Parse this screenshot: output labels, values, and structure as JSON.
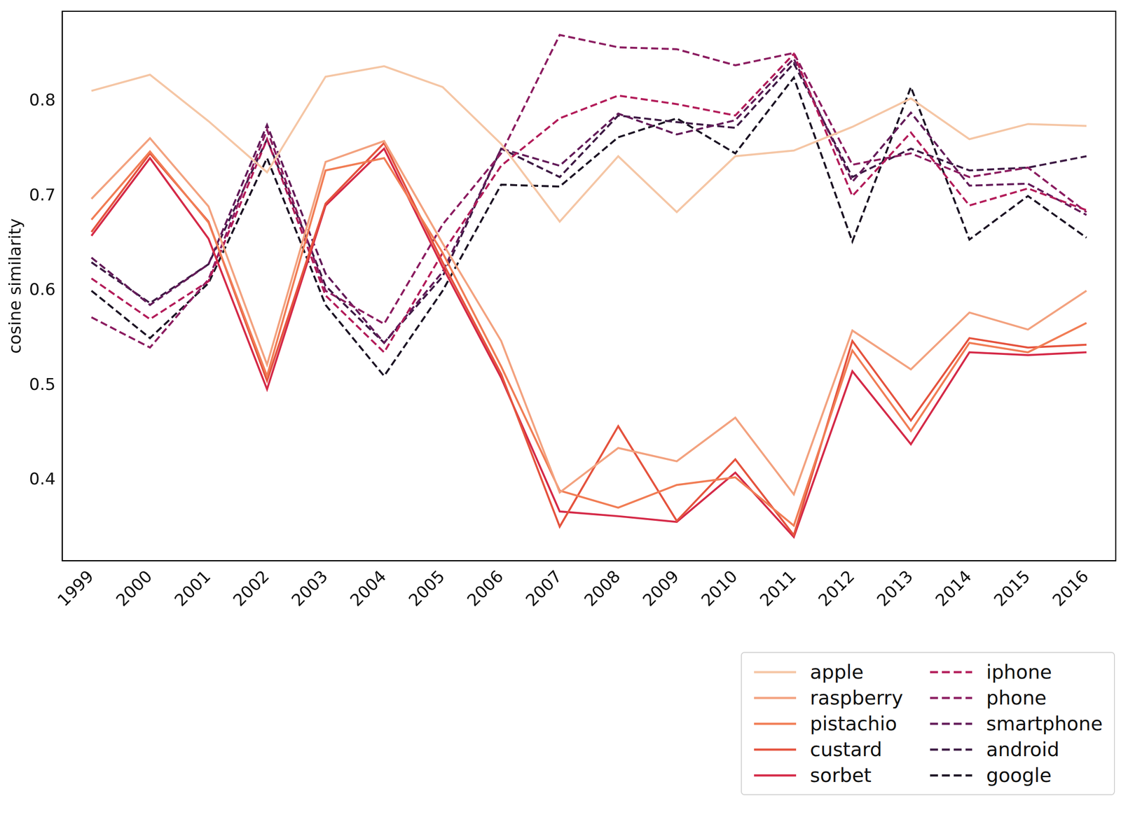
{
  "chart_data": {
    "type": "line",
    "y_label": "cosine similarity",
    "categories": [
      "1999",
      "2000",
      "2001",
      "2002",
      "2003",
      "2004",
      "2005",
      "2006",
      "2007",
      "2008",
      "2009",
      "2010",
      "2011",
      "2012",
      "2013",
      "2014",
      "2015",
      "2016"
    ],
    "ylim": [
      0.315,
      0.895
    ],
    "yticks": [
      0.4,
      0.5,
      0.6,
      0.7,
      0.8
    ],
    "grid": false,
    "legend": "lower right",
    "series": [
      {
        "name": "apple",
        "color": "#f5c6a5",
        "line_style": "solid",
        "values": [
          0.811,
          0.828,
          0.779,
          0.725,
          0.826,
          0.837,
          0.815,
          0.755,
          0.673,
          0.742,
          0.683,
          0.742,
          0.748,
          0.773,
          0.803,
          0.76,
          0.776,
          0.774
        ]
      },
      {
        "name": "raspberry",
        "color": "#f3a27f",
        "line_style": "solid",
        "values": [
          0.697,
          0.761,
          0.689,
          0.522,
          0.736,
          0.758,
          0.65,
          0.547,
          0.387,
          0.434,
          0.42,
          0.466,
          0.385,
          0.558,
          0.517,
          0.577,
          0.559,
          0.6
        ]
      },
      {
        "name": "pistachio",
        "color": "#f17d55",
        "line_style": "solid",
        "values": [
          0.675,
          0.747,
          0.672,
          0.51,
          0.727,
          0.74,
          0.64,
          0.52,
          0.389,
          0.371,
          0.395,
          0.403,
          0.352,
          0.537,
          0.452,
          0.545,
          0.535,
          0.566
        ]
      },
      {
        "name": "custard",
        "color": "#e5533e",
        "line_style": "solid",
        "values": [
          0.662,
          0.745,
          0.673,
          0.505,
          0.692,
          0.756,
          0.63,
          0.512,
          0.351,
          0.457,
          0.357,
          0.422,
          0.342,
          0.547,
          0.463,
          0.55,
          0.54,
          0.543
        ]
      },
      {
        "name": "sorbet",
        "color": "#d52a48",
        "line_style": "solid",
        "values": [
          0.658,
          0.74,
          0.655,
          0.496,
          0.69,
          0.75,
          0.625,
          0.508,
          0.367,
          0.362,
          0.356,
          0.408,
          0.34,
          0.515,
          0.438,
          0.535,
          0.532,
          0.535
        ]
      },
      {
        "name": "iphone",
        "color": "#b31c59",
        "line_style": "dashed",
        "values": [
          0.613,
          0.57,
          0.61,
          0.76,
          0.595,
          0.535,
          0.64,
          0.732,
          0.782,
          0.806,
          0.797,
          0.785,
          0.85,
          0.7,
          0.767,
          0.69,
          0.708,
          0.685
        ]
      },
      {
        "name": "phone",
        "color": "#8b1c60",
        "line_style": "dashed",
        "values": [
          0.572,
          0.54,
          0.612,
          0.77,
          0.6,
          0.565,
          0.67,
          0.745,
          0.87,
          0.857,
          0.855,
          0.838,
          0.851,
          0.733,
          0.745,
          0.72,
          0.73,
          0.683
        ]
      },
      {
        "name": "smartphone",
        "color": "#631b59",
        "line_style": "dashed",
        "values": [
          0.635,
          0.585,
          0.628,
          0.775,
          0.618,
          0.545,
          0.62,
          0.75,
          0.732,
          0.787,
          0.765,
          0.78,
          0.845,
          0.715,
          0.788,
          0.711,
          0.713,
          0.68
        ]
      },
      {
        "name": "android",
        "color": "#3d1a44",
        "line_style": "dashed",
        "values": [
          0.63,
          0.587,
          0.628,
          0.76,
          0.605,
          0.545,
          0.615,
          0.75,
          0.72,
          0.785,
          0.778,
          0.772,
          0.84,
          0.72,
          0.75,
          0.727,
          0.73,
          0.742
        ]
      },
      {
        "name": "google",
        "color": "#1c1424",
        "line_style": "dashed",
        "values": [
          0.6,
          0.55,
          0.608,
          0.74,
          0.585,
          0.51,
          0.6,
          0.712,
          0.71,
          0.762,
          0.782,
          0.745,
          0.825,
          0.652,
          0.815,
          0.654,
          0.7,
          0.656
        ]
      }
    ]
  }
}
